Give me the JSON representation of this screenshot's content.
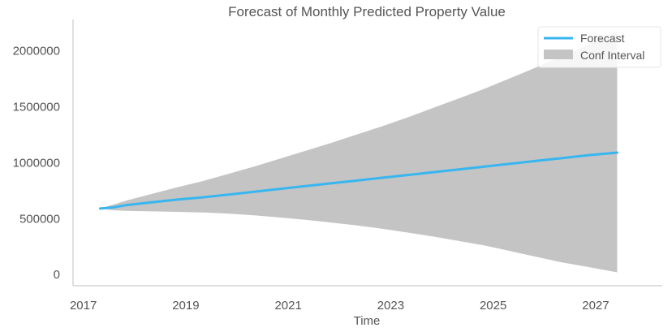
{
  "chart_data": {
    "type": "line",
    "title": "Forecast of Monthly Predicted Property Value",
    "xlabel": "Time",
    "ylabel": "",
    "xlim": [
      2016.8,
      2028.3
    ],
    "ylim": [
      -100000,
      2280000
    ],
    "x_ticks": [
      2017,
      2019,
      2021,
      2023,
      2025,
      2027
    ],
    "y_ticks": [
      0,
      500000,
      1000000,
      1500000,
      2000000
    ],
    "grid": false,
    "legend_position": "top-right",
    "colors": {
      "forecast": "#38b6f0",
      "conf_interval": "#c4c4c4",
      "axis": "#cccccc",
      "text": "#555555"
    },
    "x": [
      2017.33,
      2017.58,
      2017.83,
      2018.33,
      2018.83,
      2019.33,
      2019.83,
      2020.33,
      2020.83,
      2021.33,
      2021.83,
      2022.33,
      2022.83,
      2023.33,
      2023.83,
      2024.33,
      2024.83,
      2025.33,
      2025.83,
      2026.33,
      2026.83,
      2027.42
    ],
    "series": [
      {
        "name": "Forecast",
        "type": "line",
        "values": [
          590000,
          600000,
          620000,
          645000,
          670000,
          690000,
          715000,
          740000,
          765000,
          790000,
          815000,
          840000,
          865000,
          890000,
          915000,
          940000,
          965000,
          990000,
          1015000,
          1040000,
          1065000,
          1090000
        ]
      },
      {
        "name": "Conf Interval",
        "type": "band",
        "lower": [
          590000,
          575000,
          570000,
          565000,
          560000,
          555000,
          545000,
          530000,
          510000,
          490000,
          465000,
          440000,
          410000,
          375000,
          340000,
          300000,
          260000,
          210000,
          160000,
          110000,
          70000,
          20000
        ],
        "upper": [
          590000,
          625000,
          660000,
          720000,
          780000,
          835000,
          900000,
          965000,
          1035000,
          1105000,
          1175000,
          1250000,
          1325000,
          1405000,
          1490000,
          1575000,
          1660000,
          1755000,
          1850000,
          1950000,
          2050000,
          2170000
        ]
      }
    ]
  }
}
